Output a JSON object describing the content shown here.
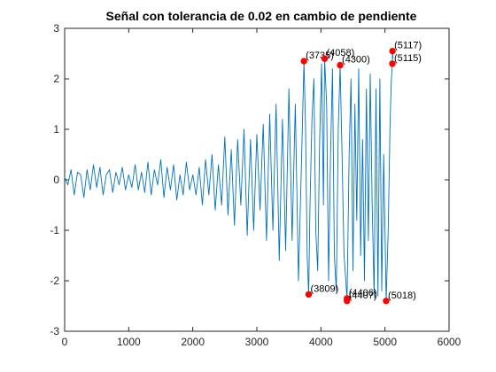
{
  "chart_data": {
    "type": "line",
    "title": "Señal con tolerancia de 0.02 en cambio de pendiente",
    "xlabel": "",
    "ylabel": "",
    "xlim": [
      0,
      6000
    ],
    "ylim": [
      -3,
      3
    ],
    "xticks": [
      0,
      1000,
      2000,
      3000,
      4000,
      5000,
      6000
    ],
    "yticks": [
      -3,
      -2,
      -1,
      0,
      1,
      2,
      3
    ],
    "grid": false,
    "box": true,
    "colors": {
      "line": "#0072bd",
      "marker": "#ff0000",
      "axis": "#262626"
    },
    "series": [
      {
        "x": [
          0,
          50,
          100,
          150,
          200,
          250,
          300,
          350,
          400,
          450,
          500,
          550,
          600,
          650,
          700,
          750,
          800,
          850,
          900,
          950,
          1000,
          1050,
          1100,
          1150,
          1200,
          1250,
          1300,
          1350,
          1400,
          1450,
          1500,
          1550,
          1600,
          1650,
          1700,
          1750,
          1800,
          1850,
          1900,
          1950,
          2000,
          2050,
          2100,
          2150,
          2200,
          2250,
          2300,
          2350,
          2400,
          2450,
          2500,
          2550,
          2600,
          2650,
          2700,
          2750,
          2800,
          2850,
          2900,
          2950,
          3000,
          3050,
          3100,
          3150,
          3200,
          3250,
          3300,
          3350,
          3400,
          3450,
          3500,
          3550,
          3600,
          3650,
          3700,
          3735,
          3760,
          3785,
          3809,
          3830,
          3860,
          3890,
          3920,
          3950,
          3980,
          4010,
          4040,
          4058,
          4090,
          4120,
          4150,
          4180,
          4210,
          4240,
          4270,
          4300,
          4330,
          4360,
          4390,
          4406,
          4407,
          4440,
          4470,
          4500,
          4530,
          4560,
          4590,
          4620,
          4650,
          4680,
          4710,
          4740,
          4770,
          4800,
          4830,
          4860,
          4890,
          4920,
          4950,
          4980,
          5018,
          5050,
          5080,
          5100,
          5115,
          5117,
          5125
        ],
        "y": [
          0.05,
          -0.1,
          0.2,
          -0.3,
          0.15,
          0.1,
          -0.35,
          0.2,
          -0.2,
          0.3,
          -0.15,
          0.25,
          -0.3,
          0.1,
          0.2,
          -0.25,
          0.15,
          -0.1,
          0.25,
          -0.2,
          0.1,
          -0.15,
          0.3,
          -0.2,
          0.15,
          -0.25,
          0.35,
          -0.3,
          0.2,
          -0.1,
          0.4,
          -0.35,
          0.25,
          -0.2,
          0.3,
          -0.4,
          0.1,
          -0.3,
          0.35,
          -0.2,
          0.1,
          -0.3,
          0.25,
          -0.5,
          0.4,
          -0.3,
          0.5,
          -0.6,
          0.3,
          -0.5,
          0.85,
          -0.7,
          0.6,
          -0.9,
          0.8,
          -0.5,
          1.0,
          -1.1,
          0.8,
          -1.0,
          0.9,
          -0.6,
          1.1,
          -1.2,
          1.3,
          -1.0,
          1.5,
          -1.6,
          1.2,
          -1.4,
          1.8,
          -1.2,
          1.5,
          -2.0,
          0.5,
          2.35,
          1.0,
          -1.5,
          -2.27,
          -0.5,
          1.2,
          2.0,
          -1.0,
          -1.8,
          0.8,
          2.3,
          -0.5,
          2.4,
          1.5,
          -2.0,
          0.5,
          2.2,
          -1.5,
          -2.2,
          1.0,
          2.27,
          0.5,
          -1.5,
          -2.0,
          -2.35,
          -2.4,
          0.5,
          2.0,
          -1.8,
          1.5,
          -0.8,
          2.2,
          -1.5,
          0.8,
          -2.0,
          1.8,
          -1.2,
          2.1,
          -0.5,
          -2.3,
          1.8,
          -2.3,
          2.0,
          -2.2,
          0.5,
          -2.4,
          -1.0,
          1.2,
          2.0,
          2.3,
          2.55,
          2.4
        ]
      }
    ],
    "markers": [
      {
        "x": 3735,
        "y": 2.35,
        "label": "(3735)"
      },
      {
        "x": 4058,
        "y": 2.4,
        "label": "(4058)"
      },
      {
        "x": 4300,
        "y": 2.27,
        "label": "(4300)"
      },
      {
        "x": 5117,
        "y": 2.55,
        "label": "(5117)"
      },
      {
        "x": 5115,
        "y": 2.3,
        "label": "(5115)"
      },
      {
        "x": 3809,
        "y": -2.27,
        "label": "(3809)"
      },
      {
        "x": 4406,
        "y": -2.35,
        "label": "(4406)"
      },
      {
        "x": 4407,
        "y": -2.4,
        "label": "(4407)"
      },
      {
        "x": 5018,
        "y": -2.4,
        "label": "(5018)"
      }
    ]
  }
}
